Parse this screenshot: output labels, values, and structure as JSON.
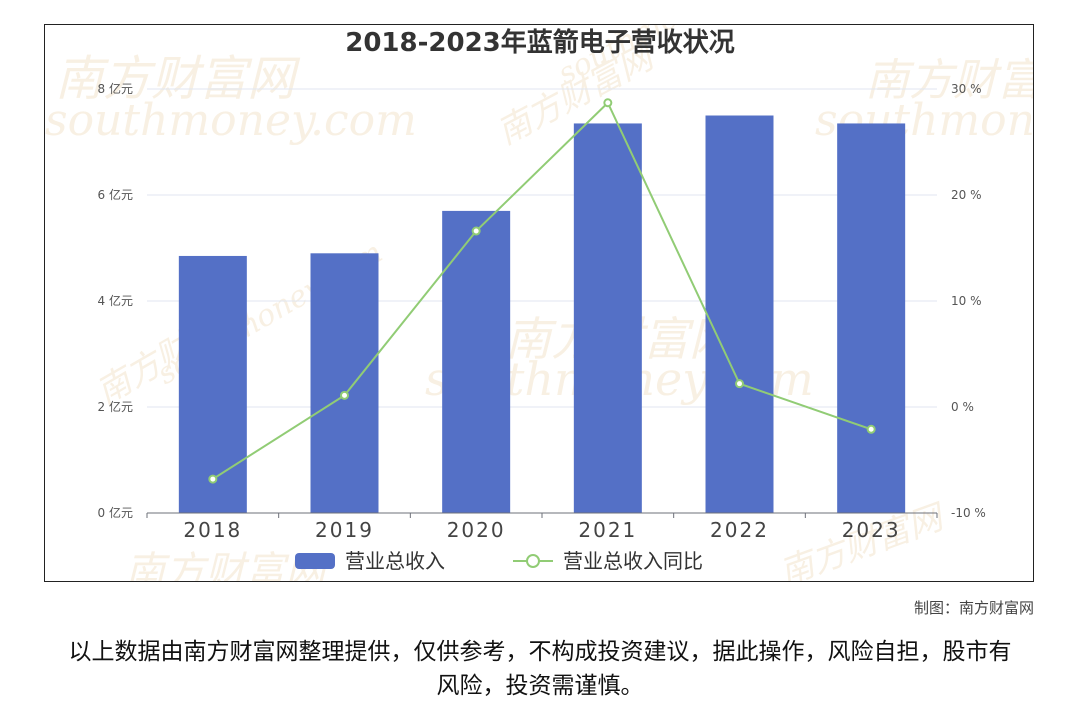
{
  "chart_data": {
    "type": "bar",
    "title": "2018-2023年蓝箭电子营收状况",
    "categories": [
      "2018",
      "2019",
      "2020",
      "2021",
      "2022",
      "2023"
    ],
    "series": [
      {
        "name": "营业总收入",
        "type": "bar",
        "axis": "left",
        "color": "#5470c6",
        "values": [
          4.85,
          4.9,
          5.7,
          7.35,
          7.5,
          7.35
        ]
      },
      {
        "name": "营业总收入同比",
        "type": "line",
        "axis": "right",
        "color": "#91cc75",
        "values": [
          -6.8,
          1.1,
          16.6,
          28.7,
          2.2,
          -2.1
        ]
      }
    ],
    "y_left": {
      "ylim": [
        0,
        8
      ],
      "ticks": [
        0,
        2,
        4,
        6,
        8
      ],
      "tick_labels": [
        "0 亿元",
        "2 亿元",
        "4 亿元",
        "6 亿元",
        "8 亿元"
      ]
    },
    "y_right": {
      "ylim": [
        -10,
        30
      ],
      "ticks": [
        -10,
        0,
        10,
        20,
        30
      ],
      "tick_labels": [
        "-10 %",
        "0 %",
        "10 %",
        "20 %",
        "30 %"
      ]
    },
    "grid": true,
    "legend_position": "bottom"
  },
  "watermarks": [
    "南方财富网",
    "southmoney.com"
  ],
  "credit": "制图：南方财富网",
  "disclaimer": "以上数据由南方财富网整理提供，仅供参考，不构成投资建议，据此操作，风险自担，股市有风险，投资需谨慎。"
}
